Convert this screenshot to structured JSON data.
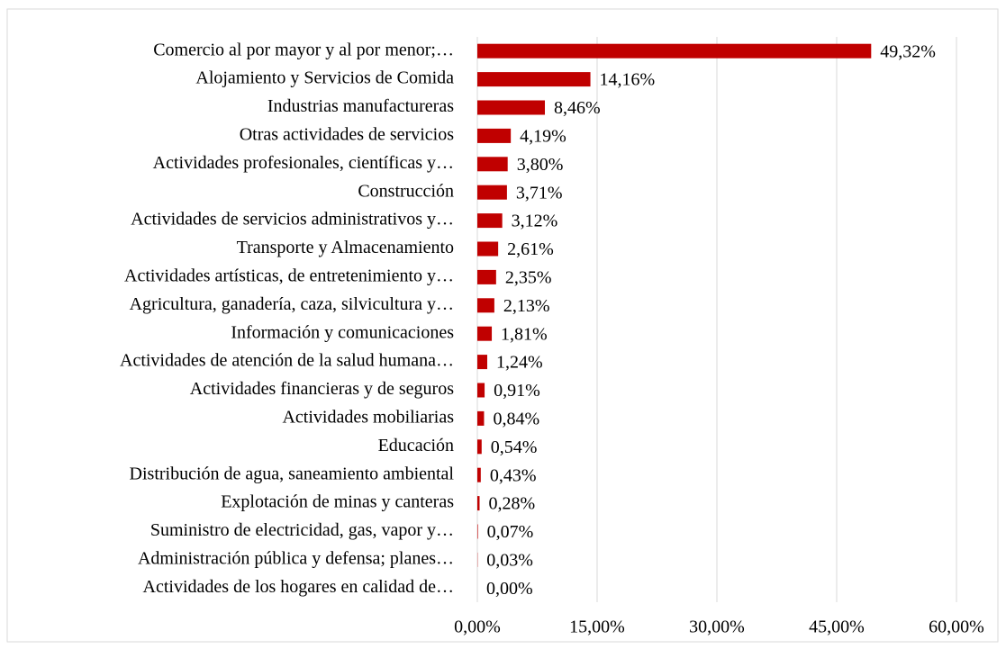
{
  "chart_data": {
    "type": "bar",
    "orientation": "horizontal",
    "color": "#c00000",
    "grid": true,
    "categories": [
      "Comercio al por mayor y al por menor;…",
      "Alojamiento y Servicios de Comida",
      "Industrias manufactureras",
      "Otras actividades de servicios",
      "Actividades profesionales, científicas y…",
      "Construcción",
      "Actividades de servicios administrativos y…",
      "Transporte y Almacenamiento",
      "Actividades artísticas, de entretenimiento y…",
      "Agricultura, ganadería, caza, silvicultura y…",
      "Información y comunicaciones",
      "Actividades de atención de la salud humana…",
      "Actividades financieras y de seguros",
      "Actividades mobiliarias",
      "Educación",
      "Distribución de agua, saneamiento ambiental",
      "Explotación de minas y canteras",
      "Suministro de electricidad, gas, vapor y…",
      "Administración pública y defensa; planes…",
      "Actividades de los hogares en calidad de…"
    ],
    "values": [
      49.32,
      14.16,
      8.46,
      4.19,
      3.8,
      3.71,
      3.12,
      2.61,
      2.35,
      2.13,
      1.81,
      1.24,
      0.91,
      0.84,
      0.54,
      0.43,
      0.28,
      0.07,
      0.03,
      0.0
    ],
    "value_labels": [
      "49,32%",
      "14,16%",
      "8,46%",
      "4,19%",
      "3,80%",
      "3,71%",
      "3,12%",
      "2,61%",
      "2,35%",
      "2,13%",
      "1,81%",
      "1,24%",
      "0,91%",
      "0,84%",
      "0,54%",
      "0,43%",
      "0,28%",
      "0,07%",
      "0,03%",
      "0,00%"
    ],
    "xlim": [
      0,
      60
    ],
    "xticks": [
      {
        "value": 0,
        "label": "0,00%"
      },
      {
        "value": 15,
        "label": "15,00%"
      },
      {
        "value": 30,
        "label": "30,00%"
      },
      {
        "value": 45,
        "label": "45,00%"
      },
      {
        "value": 60,
        "label": "60,00%"
      }
    ]
  }
}
